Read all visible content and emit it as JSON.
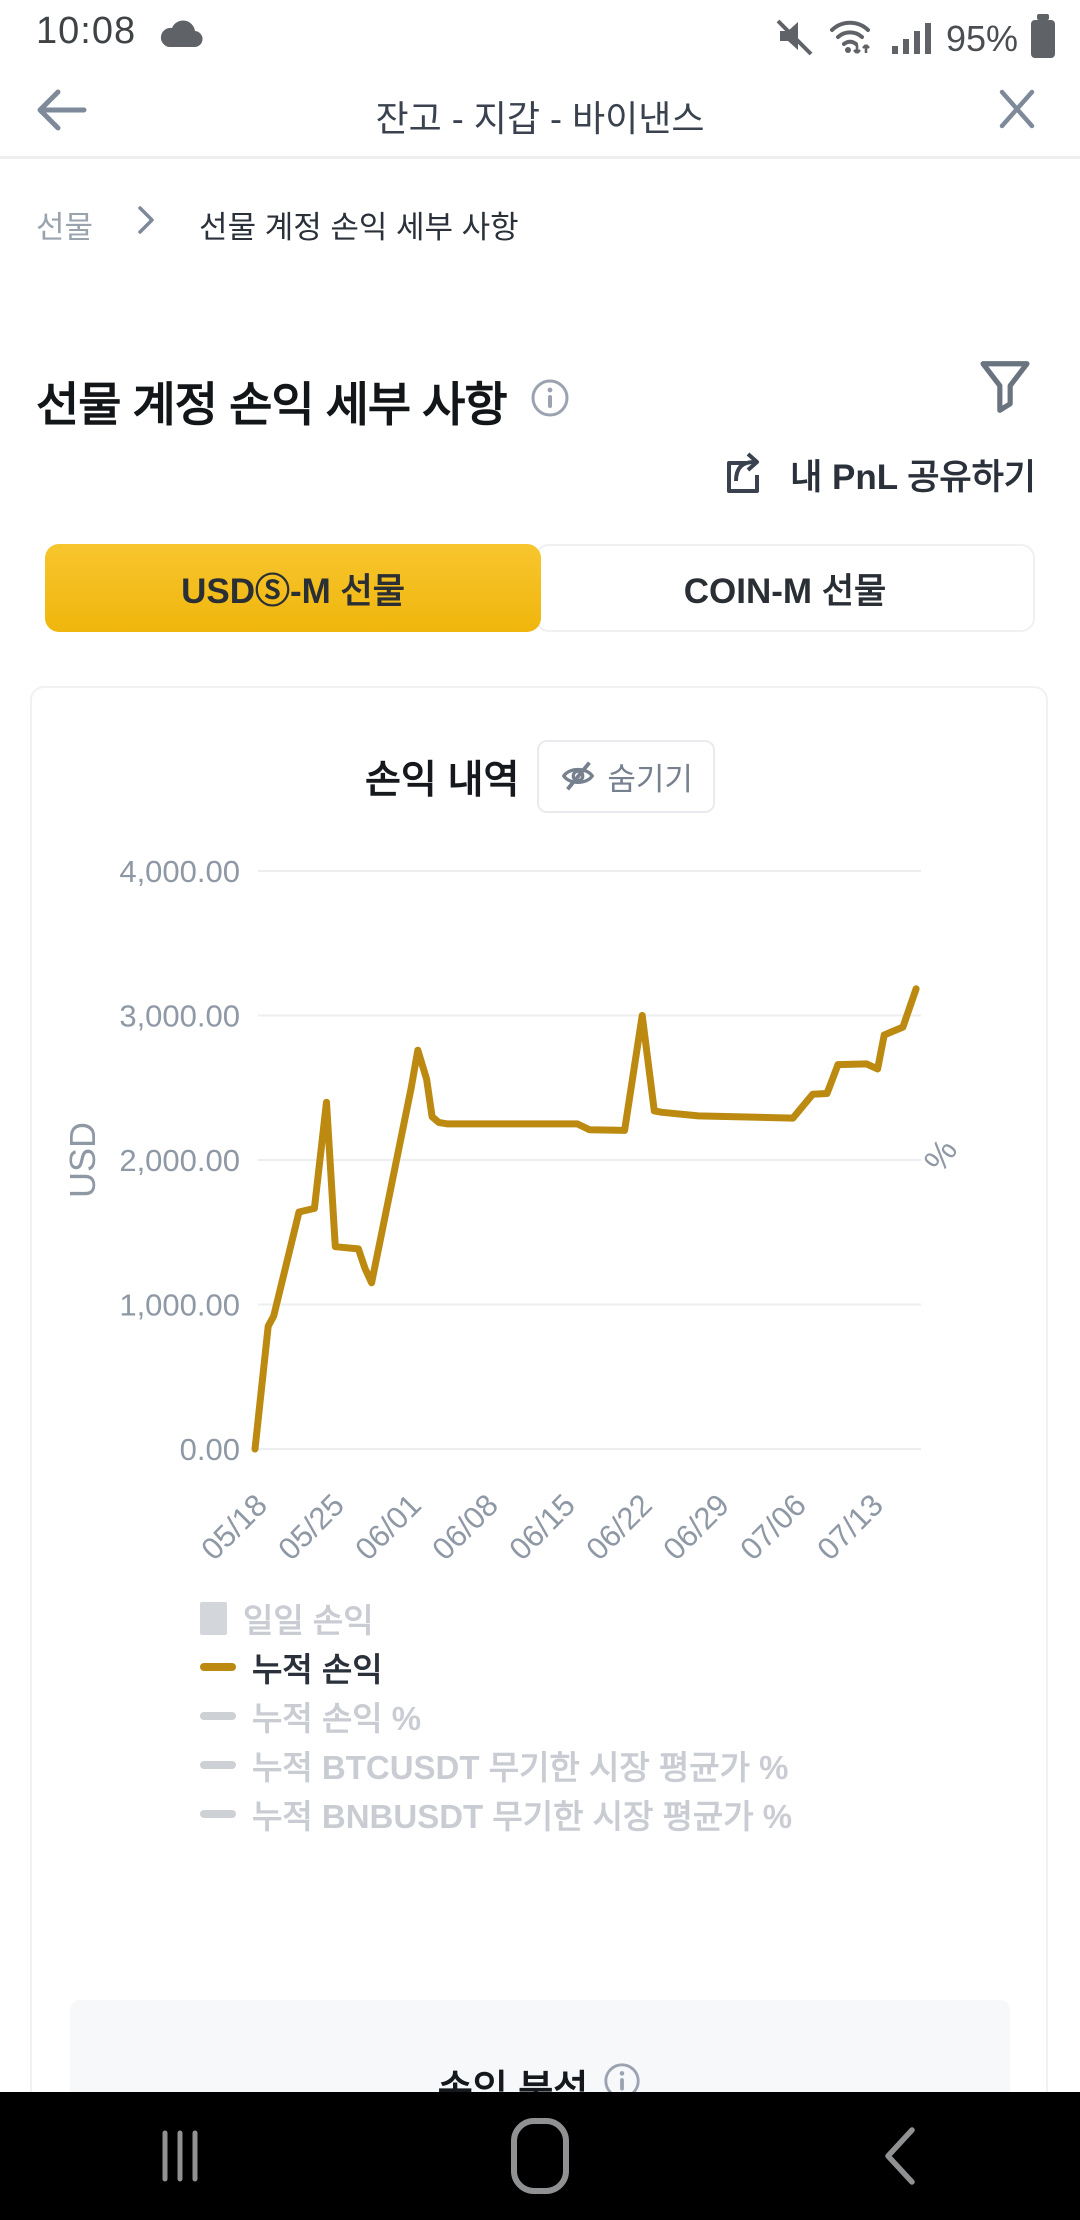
{
  "status_bar": {
    "time": "10:08",
    "battery": "95%"
  },
  "header": {
    "title": "잔고 - 지갑 - 바이낸스"
  },
  "breadcrumb": {
    "root": "선물",
    "current": "선물 계정 손익 세부 사항"
  },
  "page": {
    "title": "선물 계정 손익 세부 사항",
    "share_label": "내 PnL 공유하기"
  },
  "tabs": {
    "active": "USDⓈ-M 선물",
    "inactive": "COIN-M 선물"
  },
  "chart_card": {
    "title": "손익 내역",
    "hide_label": "숨기기"
  },
  "bottom_section": {
    "title": "손익 분석"
  },
  "colors": {
    "accent_yellow": "#F0B90B",
    "line_gold": "#BC8A10",
    "axis_text": "#8F98A5",
    "gridline": "#ECEEF0",
    "inactive_gray": "#C9CDD3",
    "active_text": "#2B313A"
  },
  "chart_data": {
    "type": "line",
    "title": "손익 내역",
    "y_axis": {
      "label": "USD",
      "min": 0,
      "max": 4000,
      "ticks": [
        {
          "value": 0,
          "label": "0.00"
        },
        {
          "value": 1000,
          "label": "1,000.00"
        },
        {
          "value": 2000,
          "label": "2,000.00"
        },
        {
          "value": 3000,
          "label": "3,000.00"
        },
        {
          "value": 4000,
          "label": "4,000.00"
        }
      ]
    },
    "y2_axis": {
      "label": "%"
    },
    "x_axis": {
      "tick_labels": [
        "05/18",
        "05/25",
        "06/01",
        "06/08",
        "06/15",
        "06/22",
        "06/29",
        "07/06",
        "07/13"
      ],
      "days_per_tick": 7
    },
    "series": [
      {
        "name": "누적 손익",
        "color": "#BC8A10",
        "unit": "USD",
        "points_days_vs_usd": [
          [
            0,
            0
          ],
          [
            1.2,
            850
          ],
          [
            1.7,
            920
          ],
          [
            4.0,
            1640
          ],
          [
            5.4,
            1665
          ],
          [
            6.5,
            2400
          ],
          [
            7.3,
            1400
          ],
          [
            9.4,
            1385
          ],
          [
            10.0,
            1250
          ],
          [
            10.6,
            1150
          ],
          [
            14.2,
            2500
          ],
          [
            14.8,
            2760
          ],
          [
            15.6,
            2560
          ],
          [
            16.1,
            2300
          ],
          [
            16.7,
            2260
          ],
          [
            17.5,
            2250
          ],
          [
            29.3,
            2250
          ],
          [
            30.4,
            2210
          ],
          [
            33.6,
            2205
          ],
          [
            35.2,
            3000
          ],
          [
            36.3,
            2340
          ],
          [
            37.0,
            2330
          ],
          [
            40.3,
            2305
          ],
          [
            48.9,
            2290
          ],
          [
            50.7,
            2455
          ],
          [
            52.0,
            2460
          ],
          [
            53.0,
            2660
          ],
          [
            55.6,
            2665
          ],
          [
            56.6,
            2630
          ],
          [
            57.2,
            2865
          ],
          [
            58.9,
            2920
          ],
          [
            60.1,
            3185
          ]
        ]
      }
    ],
    "legend": [
      {
        "label": "일일 손익",
        "swatch": "square",
        "color": "#D3D6DB",
        "active": false
      },
      {
        "label": "누적 손익",
        "swatch": "line",
        "color": "#BC8A10",
        "active": true
      },
      {
        "label": "누적 손익 %",
        "swatch": "line",
        "color": "#CDD0D5",
        "active": false
      },
      {
        "label": "누적 BTCUSDT 무기한 시장 평균가 %",
        "swatch": "line",
        "color": "#CDD0D5",
        "active": false
      },
      {
        "label": "누적 BNBUSDT 무기한 시장 평균가 %",
        "swatch": "line",
        "color": "#CDD0D5",
        "active": false
      }
    ],
    "grid": true,
    "legend_position": "bottom-left"
  }
}
